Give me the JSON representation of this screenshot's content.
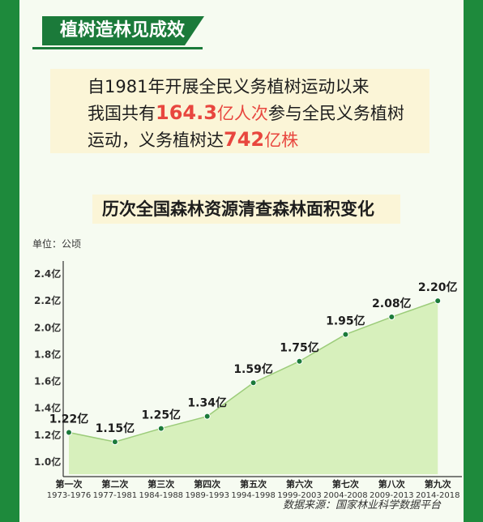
{
  "header": {
    "title": "植树造林见成效"
  },
  "summary": {
    "line1": "自1981年开展全民义务植树运动以来",
    "line2_pre": "我国共有",
    "line2_num": "164.3",
    "line2_unit": "亿人次",
    "line2_post": "参与全民义务植树",
    "line3_pre": "运动，义务植树达",
    "line3_num": "742",
    "line3_unit": "亿株"
  },
  "source": "数据来源：国家林业科学数据平台",
  "colors": {
    "background": "#1e8a3c",
    "area": "#d7f0bc",
    "line": "#1b7a3a",
    "highlight": "#e8463e"
  },
  "chart_data": {
    "type": "area",
    "title": "历次全国森林资源清查森林面积变化",
    "unit_label": "单位：公顷",
    "categories": [
      {
        "name": "第一次",
        "period": "1973-1976"
      },
      {
        "name": "第二次",
        "period": "1977-1981"
      },
      {
        "name": "第三次",
        "period": "1984-1988"
      },
      {
        "name": "第四次",
        "period": "1989-1993"
      },
      {
        "name": "第五次",
        "period": "1994-1998"
      },
      {
        "name": "第六次",
        "period": "1999-2003"
      },
      {
        "name": "第七次",
        "period": "2004-2008"
      },
      {
        "name": "第八次",
        "period": "2009-2013"
      },
      {
        "name": "第九次",
        "period": "2014-2018"
      }
    ],
    "values": [
      1.22,
      1.15,
      1.25,
      1.34,
      1.59,
      1.75,
      1.95,
      2.08,
      2.2
    ],
    "data_labels": [
      "1.22亿",
      "1.15亿",
      "1.25亿",
      "1.34亿",
      "1.59亿",
      "1.75亿",
      "1.95亿",
      "2.08亿",
      "2.20亿"
    ],
    "yticks": [
      "1.0亿",
      "1.2亿",
      "1.4亿",
      "1.6亿",
      "1.8亿",
      "2.0亿",
      "2.2亿",
      "2.4亿"
    ],
    "ylim": [
      1.0,
      2.4
    ],
    "grid": false
  }
}
